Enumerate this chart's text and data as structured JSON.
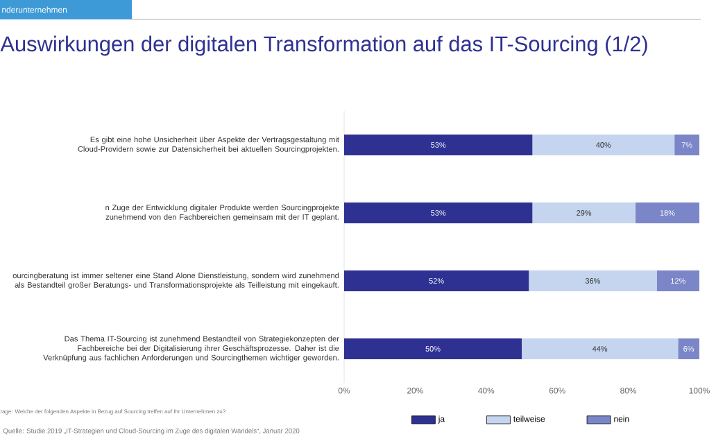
{
  "chart_data": {
    "type": "bar",
    "orientation": "horizontal",
    "stacked": true,
    "title": "Auswirkungen der digitalen Transformation auf das IT-Sourcing (1/2)",
    "categories": [
      "Es gibt eine hohe Unsicherheit über Aspekte der Vertragsgestaltung mit Cloud-Providern sowie zur Datensicherheit bei aktuellen Sourcingprojekten.",
      "n Zuge der Entwicklung digitaler Produkte werden Sourcingprojekte zunehmend von den Fachbereichen gemeinsam mit der IT geplant.",
      "ourcingberatung ist immer seltener eine Stand Alone Dienstleistung, sondern wird zunehmend als Bestandteil großer Beratungs- und Transformationsprojekte als Teilleistung mit eingekauft.",
      "Das Thema IT-Sourcing ist zunehmend Bestandteil von Strategiekonzepten der Fachbereiche bei der Digitalisierung ihrer Geschäftsprozesse. Daher ist die Verknüpfung aus fachlichen Anforderungen und Sourcingthemen wichtiger geworden."
    ],
    "series": [
      {
        "name": "ja",
        "color": "#2e3192",
        "values": [
          53,
          53,
          52,
          50
        ],
        "value_labels": [
          "53%",
          "53%",
          "52%",
          "50%"
        ]
      },
      {
        "name": "teilweise",
        "color": "#c5d5ef",
        "values": [
          40,
          29,
          36,
          44
        ],
        "value_labels": [
          "40%",
          "29%",
          "36%",
          "44%"
        ]
      },
      {
        "name": "nein",
        "color": "#7b86c8",
        "values": [
          7,
          18,
          12,
          6
        ],
        "value_labels": [
          "7%",
          "18%",
          "12%",
          "6%"
        ]
      }
    ],
    "xlim": [
      0,
      100
    ],
    "xticks": [
      {
        "value": 0,
        "label": "0%"
      },
      {
        "value": 20,
        "label": "20%"
      },
      {
        "value": 40,
        "label": "40%"
      },
      {
        "value": 60,
        "label": "60%"
      },
      {
        "value": 80,
        "label": "80%"
      },
      {
        "value": 100,
        "label": "100%"
      }
    ],
    "legend": "bottom",
    "annotations": [
      "nderunternehmen",
      "rage: Welche der folgenden Aspekte in Bezug auf Sourcing treffen auf Ihr Unternehmen zu?",
      "Quelle: Studie 2019 „IT-Strategien und Cloud-Sourcing im Zuge des digitalen Wandels“, Januar 2020"
    ]
  }
}
